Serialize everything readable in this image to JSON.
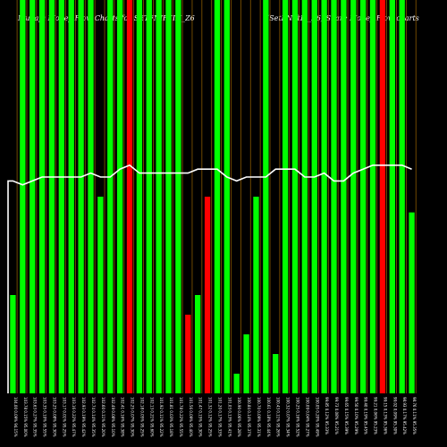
{
  "chart_data": {
    "type": "bar",
    "title": "Munafa Money Flow Charts for SETFNIFTIN_Z6",
    "subtitle": "(SetFNiftIn_Z6) Share Money Flow charts",
    "ylim": [
      0,
      100
    ],
    "colors": {
      "up": "#00ff00",
      "down": "#ff0000",
      "grid": "#8b5a00",
      "line": "#ffffff",
      "background": "#000000"
    },
    "categories": [
      "Tue 05 Feb 2025",
      "Mon 04 Feb 2025",
      "Fri 31 Jan 2025",
      "Thu 30 Jan 2025",
      "Wed 29 Jan 2025",
      "Tue 28 Jan 2025",
      "Mon 27 Jan 2025",
      "Fri 24 Jan 2025",
      "Thu 23 Jan 2025",
      "Wed 22 Jan 2025",
      "Tue 21 Jan 2025",
      "Mon 20 Jan 2025",
      "Fri 17 Jan 2025",
      "Thu 16 Jan 2025",
      "Wed 15 Jan 2025",
      "Tue 14 Jan 2025",
      "Mon 13 Jan 2025",
      "Fri 10 Jan 2025",
      "Thu 09 Jan 2025",
      "Wed 08 Jan 2025",
      "Tue 07 Jan 2025",
      "Mon 06 Jan 2025",
      "Fri 03 Jan 2025",
      "Thu 02 Jan 2025",
      "Wed 01 Jan 2025",
      "Tue 31 Dec 2024",
      "Mon 30 Dec 2024",
      "Fri 27 Dec 2024",
      "Thu 26 Dec 2024",
      "Tue 24 Dec 2024",
      "Mon 23 Dec 2024",
      "Fri 20 Dec 2024",
      "Thu 19 Dec 2024",
      "Wed 18 Dec 2024",
      "Tue 17 Dec 2024",
      "Mon 16 Dec 2024",
      "Fri 13 Dec 2024",
      "Thu 12 Dec 2024",
      "Wed 11 Dec 2024",
      "Tue 10 Dec 2024",
      "Mon 09 Dec 2024",
      "Fri 06 Dec 2024"
    ],
    "x_tick_labels": [
      "104.00 0.09% 94.15%",
      "103.78 0.15% 95.00%",
      "103.63 0.27% 95.35%",
      "103.35 0.10% 95.55%",
      "103.25 0.08% 95.30%",
      "103.17 0.01% 95.25%",
      "103.16 0.22% 95.47%",
      "102.93 0.19% 95.42%",
      "102.74 0.14% 95.35%",
      "102.60 0.11% 95.20%",
      "102.49 0.08% 95.10%",
      "102.41 0.16% 95.38%",
      "102.25 0.07% 95.30%",
      "102.18 0.05% 95.25%",
      "102.13 0.21% 95.60%",
      "101.92 0.11% 95.22%",
      "101.81 0.03% 95.18%",
      "101.78 0.22% 95.55%",
      "101.56 0.09% 95.40%",
      "101.47 0.15% 95.30%",
      "101.32 0.12% 95.25%",
      "101.20 0.17% 95.33%",
      "101.03 0.13% 95.41%",
      "100.90 0.06% 95.28%",
      "100.84 0.14% 95.37%",
      "100.70 0.09% 95.31%",
      "100.61 0.18% 95.44%",
      "100.43 0.11% 95.26%",
      "100.32 0.07% 95.34%",
      "100.25 0.16% 95.52%",
      "100.09 0.04% 95.27%",
      "100.05 0.20% 95.49%",
      "99.85 0.12% 95.33%",
      "99.73 0.08% 95.21%",
      "99.65 0.15% 95.39%",
      "99.50 0.10% 95.29%",
      "99.40 0.19% 95.45%",
      "99.21 0.06% 95.23%",
      "99.15 0.13% 95.36%",
      "99.02 0.09% 95.30%",
      "98.93 0.17% 95.42%",
      "98.76 0.11% 95.35%"
    ],
    "series": [
      {
        "values": [
          25,
          100,
          100,
          100,
          100,
          100,
          100,
          100,
          100,
          100,
          100,
          100,
          100,
          100,
          100,
          100,
          100,
          100,
          100,
          28,
          33,
          100,
          100,
          100,
          100,
          100,
          100,
          100,
          100,
          100,
          100,
          100,
          100,
          100,
          100,
          100,
          100,
          100,
          100,
          100,
          100,
          46
        ],
        "direction": [
          "up",
          "up",
          "up",
          "up",
          "up",
          "up",
          "up",
          "up",
          "up",
          "up",
          "up",
          "up",
          "down",
          "up",
          "up",
          "up",
          "up",
          "up",
          "down",
          "up",
          "down",
          "up",
          "up",
          "up",
          "up",
          "up",
          "up",
          "up",
          "up",
          "up",
          "up",
          "up",
          "up",
          "up",
          "up",
          "up",
          "up",
          "up",
          "down",
          "up",
          "up",
          "up"
        ]
      }
    ],
    "full_heights": [
      25,
      100,
      100,
      100,
      100,
      100,
      100,
      100,
      100,
      100,
      100,
      100,
      100,
      100,
      100,
      100,
      100,
      100,
      100,
      100,
      100,
      100,
      100,
      100,
      100,
      100,
      100,
      100,
      100,
      100,
      100,
      100,
      100,
      100,
      100,
      100,
      100,
      100,
      100,
      100,
      100,
      100
    ],
    "bar_values": [
      25,
      100,
      100,
      100,
      100,
      100,
      100,
      100,
      100,
      50,
      100,
      100,
      100,
      100,
      100,
      100,
      100,
      100,
      20,
      25,
      50,
      100,
      100,
      5,
      15,
      50,
      100,
      10,
      100,
      100,
      100,
      100,
      100,
      100,
      100,
      100,
      100,
      100,
      100,
      100,
      100,
      46
    ],
    "line_values": [
      54,
      53,
      54,
      55,
      55,
      55,
      55,
      55,
      56,
      55,
      55,
      57,
      58,
      56,
      56,
      56,
      56,
      56,
      56,
      57,
      57,
      57,
      55,
      54,
      55,
      55,
      55,
      57,
      57,
      57,
      55,
      55,
      56,
      54,
      54,
      56,
      57,
      58,
      58,
      58,
      58,
      57
    ],
    "line_start": 0
  }
}
